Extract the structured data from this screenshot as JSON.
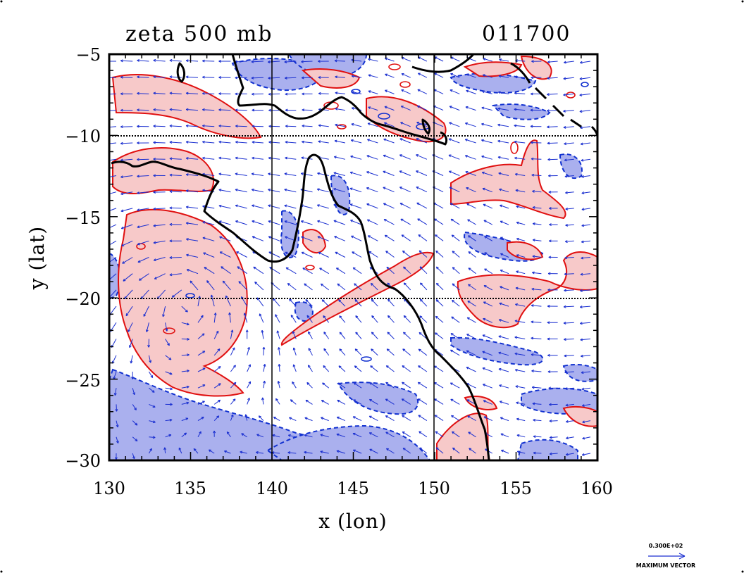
{
  "title_left": "zeta 500 mb",
  "title_right": "011700",
  "x_axis": {
    "label": "x (lon)",
    "ticks": [
      "130",
      "135",
      "140",
      "145",
      "150",
      "155",
      "160"
    ],
    "range": [
      130,
      160
    ]
  },
  "y_axis": {
    "label": "y (lat)",
    "ticks": [
      "−5",
      "−10",
      "−15",
      "−20",
      "−25",
      "−30"
    ],
    "range": [
      -30,
      -5
    ]
  },
  "legend": {
    "value": "0.300E+02",
    "caption": "MAXIMUM VECTOR"
  },
  "colors": {
    "positive_fill": "#f7c9c9",
    "positive_line": "#e01010",
    "negative_fill": "#aab0ee",
    "negative_line": "#1030d0",
    "vector": "#1a2fd0",
    "coast": "#000000"
  },
  "chart_data": {
    "type": "heatmap",
    "gridlines_lon": [
      140,
      150
    ],
    "gridlines_lat": [
      -10,
      -20
    ],
    "grid": "dotted black lines",
    "legend_position": "bottom-right",
    "overlay": "wind vectors",
    "basemap": "coastlines"
  }
}
